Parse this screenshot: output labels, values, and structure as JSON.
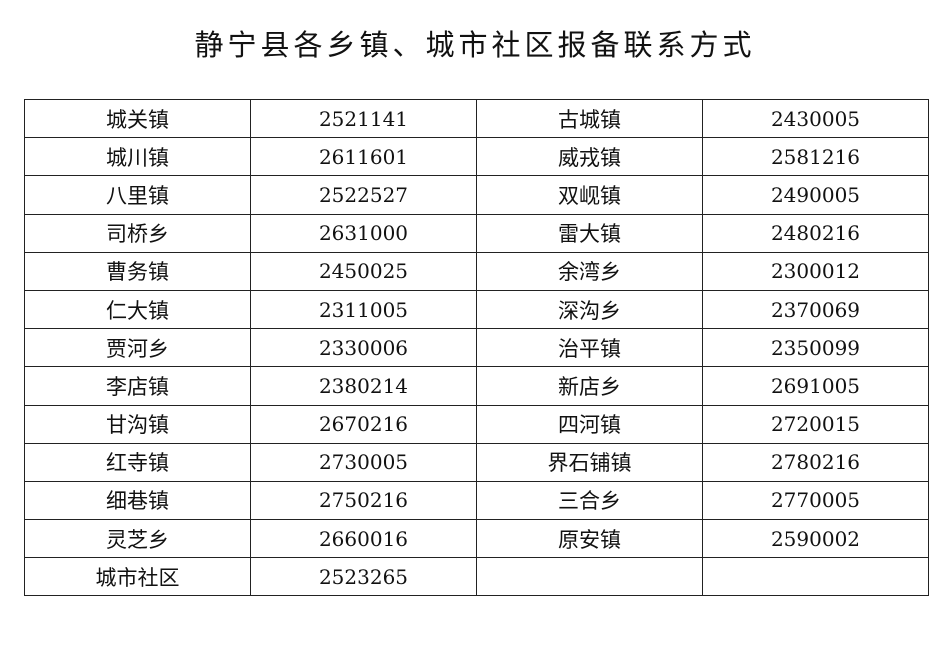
{
  "title": "静宁县各乡镇、城市社区报备联系方式",
  "rows": [
    [
      "城关镇",
      "2521141",
      "古城镇",
      "2430005"
    ],
    [
      "城川镇",
      "2611601",
      "威戎镇",
      "2581216"
    ],
    [
      "八里镇",
      "2522527",
      "双岘镇",
      "2490005"
    ],
    [
      "司桥乡",
      "2631000",
      "雷大镇",
      "2480216"
    ],
    [
      "曹务镇",
      "2450025",
      "余湾乡",
      "2300012"
    ],
    [
      "仁大镇",
      "2311005",
      "深沟乡",
      "2370069"
    ],
    [
      "贾河乡",
      "2330006",
      "治平镇",
      "2350099"
    ],
    [
      "李店镇",
      "2380214",
      "新店乡",
      "2691005"
    ],
    [
      "甘沟镇",
      "2670216",
      "四河镇",
      "2720015"
    ],
    [
      "红寺镇",
      "2730005",
      "界石铺镇",
      "2780216"
    ],
    [
      "细巷镇",
      "2750216",
      "三合乡",
      "2770005"
    ],
    [
      "灵芝乡",
      "2660016",
      "原安镇",
      "2590002"
    ],
    [
      "城市社区",
      "2523265",
      "",
      ""
    ]
  ]
}
